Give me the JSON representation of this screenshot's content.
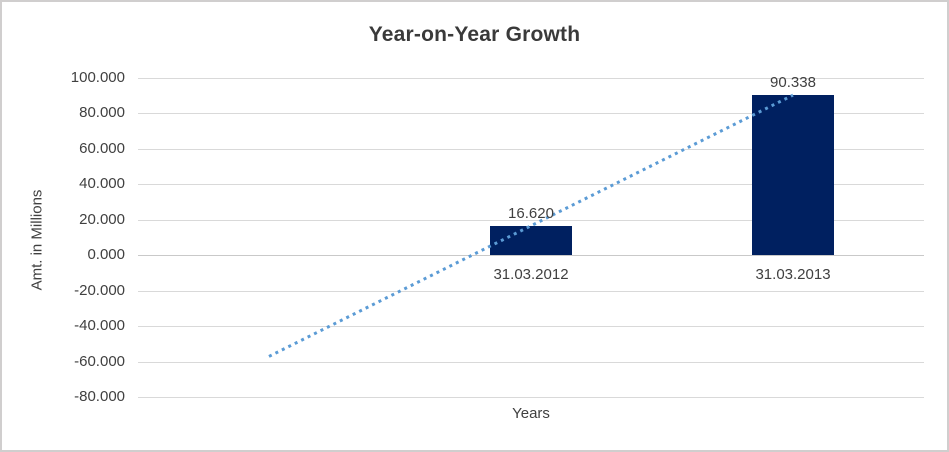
{
  "chart_data": {
    "type": "bar",
    "title": "Year-on-Year Growth",
    "xlabel": "Years",
    "ylabel": "Amt. in Millions",
    "categories": [
      "",
      "31.03.2012",
      "31.03.2013"
    ],
    "values": [
      null,
      16.62,
      90.338
    ],
    "data_labels": [
      "",
      "16.620",
      "90.338"
    ],
    "ylim": [
      -80,
      100
    ],
    "ytick_step": 20,
    "yticks": [
      {
        "value": 100,
        "label": "100.000"
      },
      {
        "value": 80,
        "label": "80.000"
      },
      {
        "value": 60,
        "label": "60.000"
      },
      {
        "value": 40,
        "label": "40.000"
      },
      {
        "value": 20,
        "label": "20.000"
      },
      {
        "value": 0,
        "label": "0.000"
      },
      {
        "value": -20,
        "label": "-20.000"
      },
      {
        "value": -40,
        "label": "-40.000"
      },
      {
        "value": -60,
        "label": "-60.000"
      },
      {
        "value": -80,
        "label": "-80.000"
      }
    ],
    "grid": true,
    "legend": "none",
    "series_name": "Amt. in Millions",
    "series_color": "#002060",
    "trendline": {
      "style": "dotted",
      "color": "#5B9BD5",
      "points": [
        {
          "category_index": 0,
          "value": -57.1
        },
        {
          "category_index": 2,
          "value": 90.338
        }
      ]
    }
  },
  "colors": {
    "background": "#FFFFFF",
    "frame_border": "#D0CECE",
    "gridline": "#D9D9D9",
    "axis_line": "#C9C9C9",
    "text": "#404040",
    "title_text": "#3A3A3A"
  }
}
